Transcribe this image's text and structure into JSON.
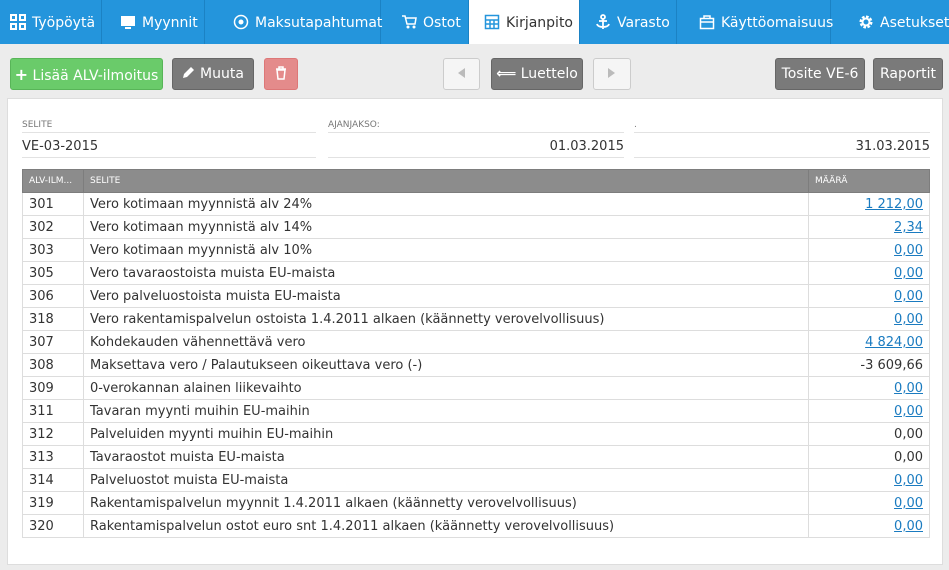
{
  "nav": {
    "tabs": [
      "Työpöytä",
      "Myynnit",
      "Maksutapahtumat",
      "Ostot",
      "Kirjanpito",
      "Varasto",
      "Käyttöomaisuus",
      "Asetukset"
    ]
  },
  "toolbar": {
    "add": "Lisää ALV-ilmoitus",
    "edit": "Muuta",
    "list": "Luettelo",
    "voucher": "Tosite VE-6",
    "reports": "Raportit"
  },
  "form": {
    "description_label": "SELITE",
    "description": "VE-03-2015",
    "period_label": "AJANJAKSO:",
    "start": "01.03.2015",
    "end_label": ".",
    "end": "31.03.2015"
  },
  "table": {
    "headers": [
      "ALV-ILM...",
      "SELITE",
      "MÄÄRÄ"
    ],
    "rows": [
      [
        "301",
        "Vero kotimaan myynnistä alv 24%",
        "1 212,00"
      ],
      [
        "302",
        "Vero kotimaan myynnistä alv 14%",
        "2,34"
      ],
      [
        "303",
        "Vero kotimaan myynnistä alv 10%",
        "0,00"
      ],
      [
        "305",
        "Vero tavaraostoista muista EU-maista",
        "0,00"
      ],
      [
        "306",
        "Vero palveluostoista muista EU-maista",
        "0,00"
      ],
      [
        "318",
        "Vero rakentamispalvelun ostoista 1.4.2011 alkaen (käännetty verovelvollisuus)",
        "0,00"
      ],
      [
        "307",
        "Kohdekauden vähennettävä vero",
        "4 824,00"
      ],
      [
        "308",
        "Maksettava vero / Palautukseen oikeuttava vero (-)",
        "-3 609,66"
      ],
      [
        "309",
        "0-verokannan alainen liikevaihto",
        "0,00"
      ],
      [
        "311",
        "Tavaran myynti muihin EU-maihin",
        "0,00"
      ],
      [
        "312",
        "Palveluiden myynti muihin EU-maihin",
        "0,00"
      ],
      [
        "313",
        "Tavaraostot muista EU-maista",
        "0,00"
      ],
      [
        "314",
        "Palveluostot muista EU-maista",
        "0,00"
      ],
      [
        "319",
        "Rakentamispalvelun myynnit 1.4.2011 alkaen (käännetty verovelvollisuus)",
        "0,00"
      ],
      [
        "320",
        "Rakentamispalvelun ostot euro snt 1.4.2011 alkaen (käännetty verovelvollisuus)",
        "0,00"
      ]
    ]
  }
}
